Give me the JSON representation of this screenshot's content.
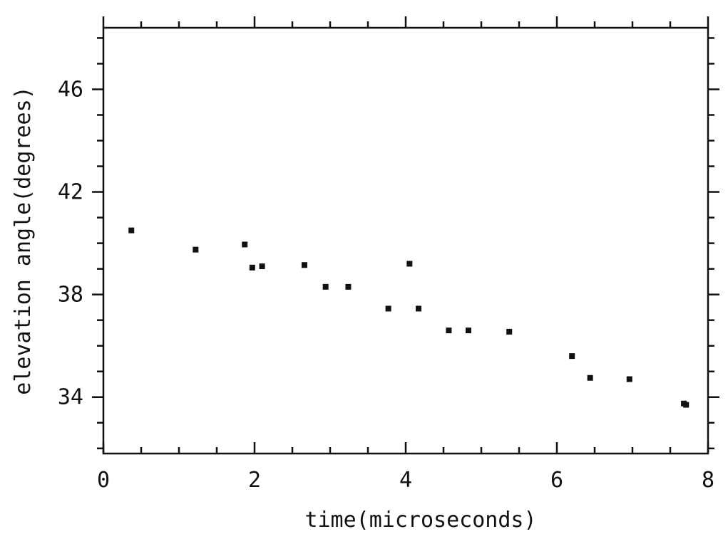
{
  "chart_data": {
    "type": "scatter",
    "title": "",
    "xlabel": "time(microseconds)",
    "ylabel": "elevation angle(degrees)",
    "xlim": [
      0,
      8
    ],
    "ylim": [
      31.8,
      48.4
    ],
    "x_ticks": [
      0,
      2,
      4,
      6,
      8
    ],
    "x_tick_labels": [
      "0",
      "2",
      "4",
      "6",
      "8"
    ],
    "y_ticks": [
      34,
      38,
      42,
      46
    ],
    "y_tick_labels": [
      "34",
      "38",
      "42",
      "46"
    ],
    "x_minor_step": 0.5,
    "y_minor_step": 1,
    "grid": false,
    "legend": "none",
    "marker": "square",
    "marker_color": "#111111",
    "series": [
      {
        "points": [
          {
            "x": 0.37,
            "y": 40.5
          },
          {
            "x": 1.22,
            "y": 39.75
          },
          {
            "x": 1.87,
            "y": 39.95
          },
          {
            "x": 1.97,
            "y": 39.05
          },
          {
            "x": 2.1,
            "y": 39.1
          },
          {
            "x": 2.66,
            "y": 39.15
          },
          {
            "x": 2.94,
            "y": 38.3
          },
          {
            "x": 3.24,
            "y": 38.3
          },
          {
            "x": 3.77,
            "y": 37.45
          },
          {
            "x": 4.05,
            "y": 39.2
          },
          {
            "x": 4.17,
            "y": 37.45
          },
          {
            "x": 4.57,
            "y": 36.6
          },
          {
            "x": 4.83,
            "y": 36.6
          },
          {
            "x": 5.37,
            "y": 36.55
          },
          {
            "x": 6.2,
            "y": 35.6
          },
          {
            "x": 6.44,
            "y": 34.75
          },
          {
            "x": 6.96,
            "y": 34.7
          },
          {
            "x": 7.68,
            "y": 33.75
          },
          {
            "x": 7.71,
            "y": 33.7
          }
        ]
      }
    ]
  }
}
